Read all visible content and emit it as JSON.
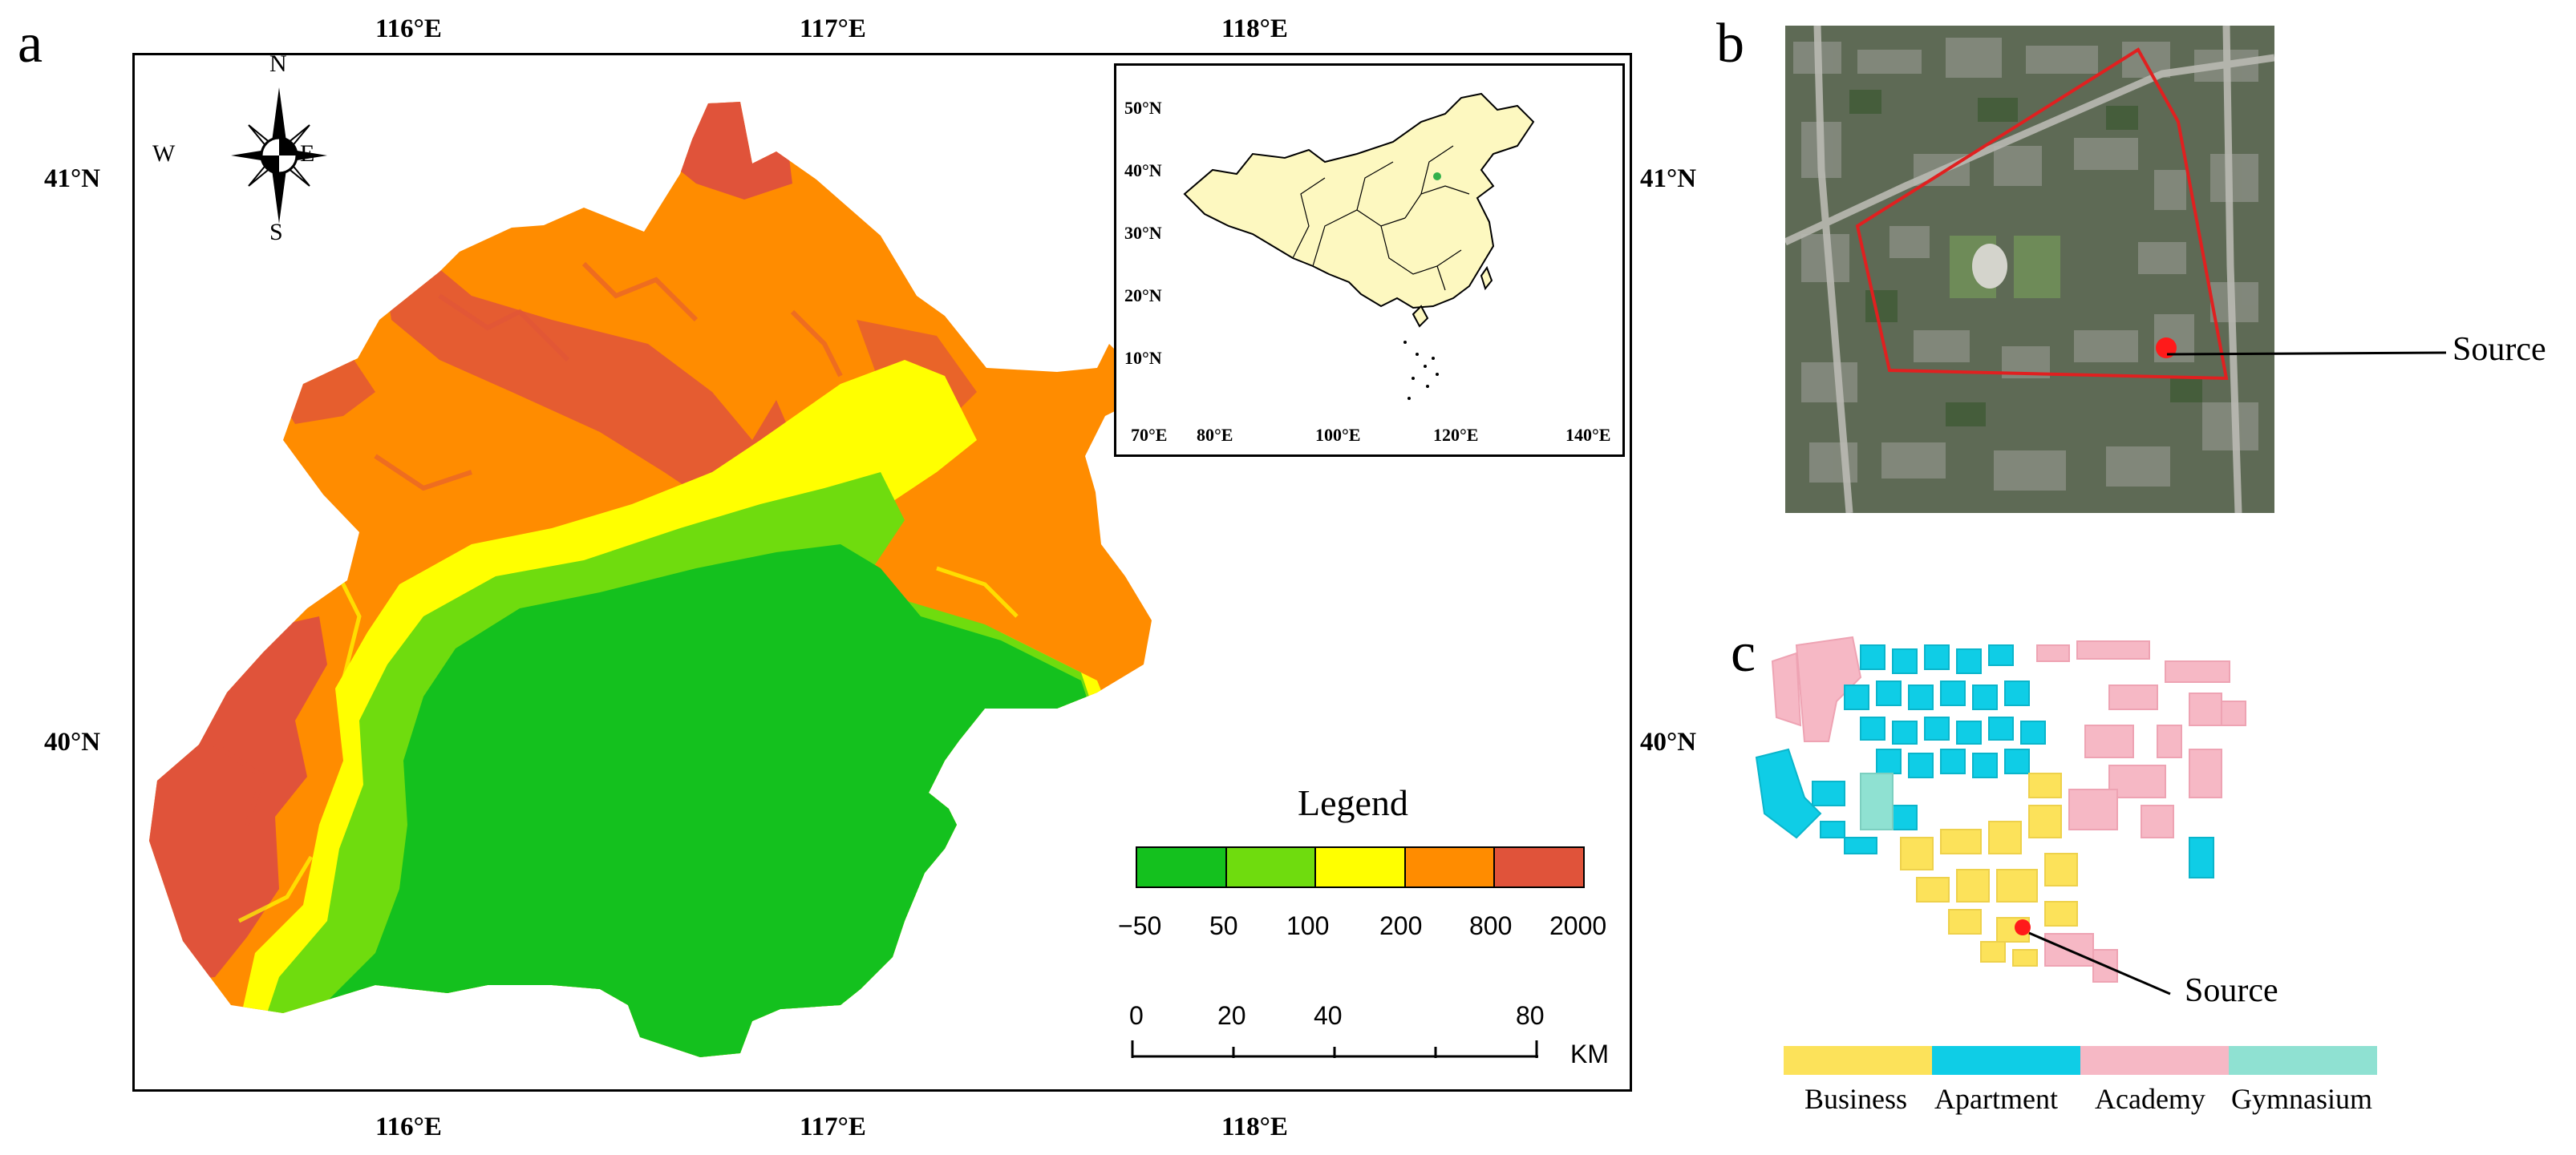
{
  "panels": {
    "a": "a",
    "b": "b",
    "c": "c"
  },
  "panel_a": {
    "lon_top": [
      "116°E",
      "117°E",
      "118°E"
    ],
    "lon_bottom": [
      "116°E",
      "117°E",
      "118°E"
    ],
    "lat_left": [
      "41°N",
      "40°N"
    ],
    "lat_right": [
      "41°N",
      "40°N"
    ],
    "compass": {
      "n": "N",
      "s": "S",
      "e": "E",
      "w": "W"
    },
    "inset": {
      "lat_ticks": [
        "50°N",
        "40°N",
        "30°N",
        "20°N",
        "10°N"
      ],
      "lon_ticks": [
        "70°E",
        "80°E",
        "100°E",
        "120°E",
        "140°E"
      ],
      "fill_color": "#fdf8c0"
    },
    "legend": {
      "title": "Legend",
      "labels": [
        "−50",
        "50",
        "100",
        "200",
        "800",
        "2000"
      ],
      "colors": [
        "#14c11e",
        "#6fdc0e",
        "#ffff00",
        "#ff8c00",
        "#e0533a"
      ]
    },
    "scale_bar": {
      "labels": [
        "0",
        "20",
        "40",
        "80"
      ],
      "unit": "KM"
    }
  },
  "panel_b": {
    "source_label": "Source"
  },
  "panel_c": {
    "source_label": "Source",
    "categories": [
      {
        "name": "Business",
        "color": "#fce25a"
      },
      {
        "name": "Apartment",
        "color": "#0fcde6"
      },
      {
        "name": "Academy",
        "color": "#f6b8c5"
      },
      {
        "name": "Gymnasium",
        "color": "#8fe1d2"
      }
    ]
  }
}
